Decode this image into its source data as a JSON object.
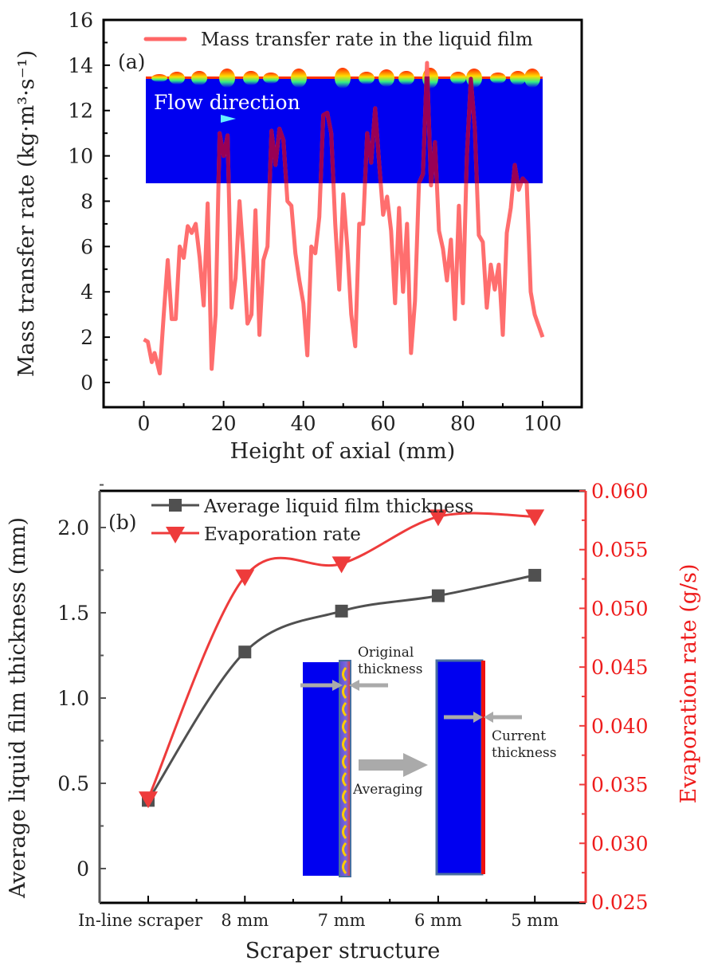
{
  "chart_data": [
    {
      "panel": "(a)",
      "type": "line",
      "title": "",
      "xlabel": "Height of axial (mm)",
      "ylabel": "Mass transfer rate (kg·m³·s⁻¹)",
      "xlim": [
        -10,
        110
      ],
      "ylim": [
        -1,
        16
      ],
      "xticks": [
        0,
        20,
        40,
        60,
        80,
        100
      ],
      "yticks": [
        0,
        2,
        4,
        6,
        8,
        10,
        12,
        14,
        16
      ],
      "xtick_labels": [
        "0",
        "20",
        "40",
        "60",
        "80",
        "100"
      ],
      "ytick_labels": [
        "0",
        "2",
        "4",
        "6",
        "8",
        "10",
        "12",
        "14",
        "16"
      ],
      "legend": {
        "position": "top",
        "entries": [
          "Mass transfer rate in the liquid film"
        ]
      },
      "series": [
        {
          "name": "Mass transfer rate in the liquid film",
          "color": "#ff6666",
          "x": [
            0,
            1,
            2,
            2.7,
            3.3,
            4,
            5,
            6,
            7,
            8,
            9,
            10,
            11,
            12,
            13,
            14,
            15,
            16,
            17,
            18,
            19,
            20,
            21,
            22,
            23,
            24,
            25,
            26,
            27,
            28,
            29,
            30,
            31,
            32,
            33,
            34,
            35,
            36,
            37,
            38,
            39,
            40,
            41,
            42,
            43,
            44,
            45,
            46,
            47,
            48,
            49,
            50,
            51,
            52,
            53,
            54,
            55,
            56,
            57,
            58,
            59,
            60,
            61,
            62,
            63,
            64,
            65,
            66,
            67,
            68,
            69,
            70,
            71,
            72,
            73,
            74,
            75,
            76,
            77,
            78,
            79,
            80,
            81,
            82,
            83,
            84,
            85,
            86,
            87,
            88,
            89,
            90,
            91,
            92,
            93,
            94,
            95,
            96,
            97,
            98,
            99,
            100
          ],
          "y": [
            1.9,
            1.8,
            0.9,
            1.3,
            0.9,
            0.4,
            3.0,
            5.4,
            2.8,
            2.8,
            6.0,
            5.5,
            6.9,
            6.6,
            7.0,
            5.5,
            3.4,
            7.9,
            0.6,
            3.0,
            11.0,
            10.0,
            10.9,
            3.3,
            4.6,
            8.0,
            5.5,
            2.6,
            3.0,
            7.6,
            2.1,
            5.4,
            6.0,
            11.1,
            9.6,
            11.2,
            10.7,
            8.0,
            7.8,
            5.7,
            4.5,
            3.5,
            1.2,
            6.0,
            5.7,
            7.3,
            11.8,
            11.9,
            11.0,
            7.0,
            4.1,
            8.3,
            6.0,
            3.0,
            1.6,
            7.0,
            7.0,
            11.0,
            9.7,
            12.1,
            9.7,
            7.4,
            8.2,
            6.7,
            3.5,
            7.7,
            4.0,
            7.0,
            1.3,
            3.6,
            8.8,
            9.2,
            14.1,
            8.7,
            10.6,
            6.7,
            5.9,
            4.5,
            6.3,
            2.8,
            7.8,
            3.5,
            10.0,
            13.4,
            11.2,
            6.5,
            6.2,
            3.3,
            5.2,
            4.1,
            5.2,
            2.1,
            6.6,
            7.7,
            9.6,
            8.5,
            9.0,
            8.8,
            4.0,
            3.0,
            2.5,
            2.0
          ]
        }
      ],
      "annotations": [
        "(a)",
        "Flow direction"
      ]
    },
    {
      "panel": "(b)",
      "type": "line",
      "title": "",
      "xlabel": "Scraper structure",
      "ylabel": "Average liquid film thickness (mm)",
      "y2label": "Evaporation rate (g/s)",
      "categories": [
        "In-line scraper",
        "8 mm",
        "7 mm",
        "6 mm",
        "5 mm"
      ],
      "ylim": [
        -0.15,
        2.2
      ],
      "y2lim": [
        0.025,
        0.06
      ],
      "yticks": [
        0,
        0.5,
        1.0,
        1.5,
        2.0
      ],
      "ytick_labels": [
        "0",
        "0.5",
        "1.0",
        "1.5",
        "2.0"
      ],
      "y2ticks": [
        0.025,
        0.03,
        0.035,
        0.04,
        0.045,
        0.05,
        0.055,
        0.06
      ],
      "y2tick_labels": [
        "0.025",
        "0.030",
        "0.035",
        "0.040",
        "0.045",
        "0.050",
        "0.055",
        "0.060"
      ],
      "legend": {
        "position": "top-left",
        "entries": [
          "Average liquid film thickness",
          "Evaporation rate"
        ]
      },
      "series": [
        {
          "name": "Average liquid film thickness",
          "axis": "left",
          "marker": "square",
          "color": "#505050",
          "values": [
            0.4,
            1.27,
            1.51,
            1.6,
            1.72
          ]
        },
        {
          "name": "Evaporation rate",
          "axis": "right",
          "marker": "triangle-down",
          "color": "#ee3b3b",
          "values": [
            0.0338,
            0.0527,
            0.0538,
            0.0578,
            0.0578
          ]
        }
      ],
      "annotations": [
        "(b)",
        "Original thickness",
        "Averaging",
        "Current thickness"
      ]
    }
  ],
  "labels": {
    "panel_a": "(a)",
    "panel_b": "(b)",
    "flow_direction": "Flow direction",
    "original_thickness_line1": "Original",
    "original_thickness_line2": "thickness",
    "averaging": "Averaging",
    "current_thickness_line1": "Current",
    "current_thickness_line2": "thickness"
  },
  "colors": {
    "mass_transfer_line": "#ff6666",
    "thickness_series": "#505050",
    "evaporation_series": "#ee3b3b",
    "right_axis": "#ee3b3b",
    "fluid_blue": "#0000f0",
    "flow_arrow": "#66eeff"
  }
}
